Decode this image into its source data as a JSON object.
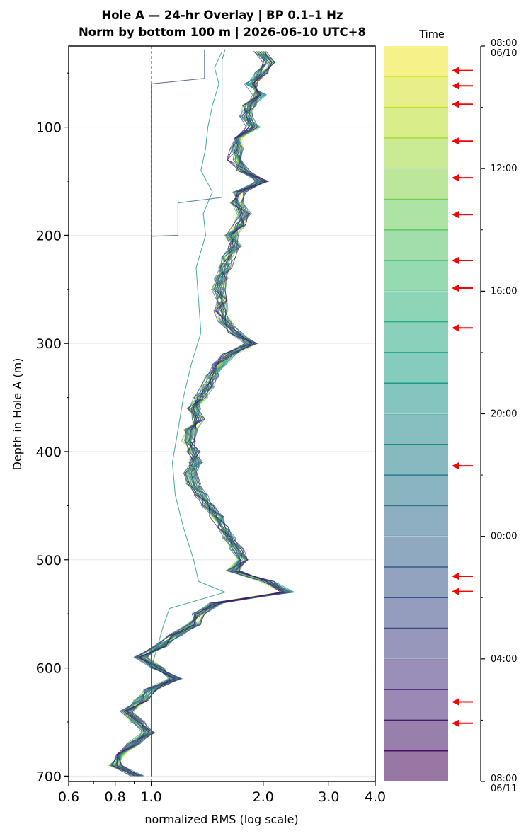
{
  "chart_data": {
    "type": "line",
    "title_line1": "Hole A — 24-hr Overlay  |  BP 0.1–1 Hz",
    "title_line2": "Norm by bottom 100 m  |  2026-06-10 UTC+8",
    "xlabel": "normalized RMS  (log scale)",
    "ylabel": "Depth in Hole A (m)",
    "x_scale": "log",
    "xlim": [
      0.6,
      4.0
    ],
    "ylim": [
      705,
      25
    ],
    "y_inverted": true,
    "grid": "horizontal",
    "reference_line_x": 1.0,
    "x_ticks": [
      "0.6",
      "0.8",
      "1.0",
      "2.0",
      "3.0",
      "4.0"
    ],
    "y_ticks": [
      "100",
      "200",
      "300",
      "400",
      "500",
      "600",
      "700"
    ],
    "colorbar": {
      "title": "Time",
      "ticks": [
        {
          "label": "08:00",
          "sublabel": "06/10"
        },
        {
          "label": "12:00",
          "sublabel": ""
        },
        {
          "label": "16:00",
          "sublabel": ""
        },
        {
          "label": "20:00",
          "sublabel": ""
        },
        {
          "label": "00:00",
          "sublabel": ""
        },
        {
          "label": "04:00",
          "sublabel": ""
        },
        {
          "label": "08:00",
          "sublabel": "06/11"
        }
      ],
      "flagged_hours": [
        0.8,
        1.3,
        1.9,
        3.1,
        4.3,
        5.5,
        7.0,
        7.9,
        9.2,
        13.7,
        17.3,
        17.8,
        21.4,
        22.1
      ],
      "arrow_color": "#ff0000"
    },
    "profile_depths": [
      30,
      40,
      50,
      60,
      70,
      80,
      90,
      100,
      110,
      120,
      130,
      140,
      150,
      160,
      170,
      180,
      190,
      200,
      210,
      220,
      230,
      240,
      250,
      260,
      270,
      280,
      290,
      300,
      310,
      320,
      330,
      340,
      350,
      360,
      370,
      380,
      390,
      400,
      410,
      420,
      430,
      440,
      450,
      460,
      470,
      480,
      490,
      500,
      510,
      520,
      530,
      540,
      550,
      560,
      570,
      580,
      590,
      600,
      610,
      620,
      630,
      640,
      650,
      660,
      670,
      680,
      690,
      700
    ],
    "mean_profile": [
      1.96,
      2.08,
      1.98,
      1.86,
      1.96,
      1.84,
      1.8,
      1.88,
      1.74,
      1.7,
      1.67,
      1.76,
      1.98,
      1.72,
      1.7,
      1.78,
      1.74,
      1.64,
      1.68,
      1.62,
      1.58,
      1.54,
      1.52,
      1.56,
      1.54,
      1.58,
      1.68,
      1.86,
      1.62,
      1.52,
      1.46,
      1.42,
      1.36,
      1.3,
      1.34,
      1.28,
      1.26,
      1.3,
      1.32,
      1.28,
      1.3,
      1.36,
      1.42,
      1.5,
      1.56,
      1.62,
      1.7,
      1.78,
      1.66,
      2.05,
      2.32,
      1.5,
      1.34,
      1.3,
      1.16,
      1.06,
      0.94,
      1.04,
      1.16,
      1.0,
      0.94,
      0.86,
      0.92,
      0.98,
      0.9,
      0.84,
      0.8,
      0.92
    ],
    "series": [
      {
        "start_hour": 0.0,
        "values": [
          2.0,
          2.1,
          2.0,
          1.9,
          1.95,
          1.82,
          1.8,
          1.9,
          1.76,
          1.72,
          1.68,
          1.78,
          2.0,
          1.74,
          1.72,
          1.8,
          1.75,
          1.65,
          1.7,
          1.6,
          1.6,
          1.55,
          1.5,
          1.58,
          1.55,
          1.6,
          1.7,
          1.85,
          1.6,
          1.5,
          1.45,
          1.42,
          1.38,
          1.3,
          1.35,
          1.3,
          1.26,
          1.28,
          1.32,
          1.3,
          1.28,
          1.38,
          1.4,
          1.5,
          1.55,
          1.6,
          1.72,
          1.8,
          1.68,
          2.1,
          2.35,
          1.52,
          1.36,
          1.32,
          1.14,
          1.05,
          0.95,
          1.05,
          1.18,
          1.02,
          0.95,
          0.85,
          0.92,
          0.98,
          0.9,
          0.85,
          0.8,
          0.92
        ]
      },
      {
        "start_hour": 6.0,
        "values": [
          1.95,
          2.05,
          1.96,
          1.88,
          1.98,
          1.86,
          1.82,
          1.86,
          1.72,
          1.7,
          1.66,
          1.74,
          1.96,
          1.7,
          1.68,
          1.76,
          1.72,
          1.62,
          1.66,
          1.64,
          1.56,
          1.52,
          1.54,
          1.55,
          1.52,
          1.56,
          1.66,
          1.9,
          1.64,
          1.54,
          1.48,
          1.4,
          1.34,
          1.32,
          1.36,
          1.26,
          1.25,
          1.3,
          1.3,
          1.26,
          1.32,
          1.34,
          1.44,
          1.52,
          1.58,
          1.64,
          1.72,
          1.76,
          1.64,
          2.0,
          2.3,
          1.48,
          1.33,
          1.28,
          1.17,
          1.07,
          0.93,
          1.03,
          1.15,
          1.01,
          0.95,
          0.87,
          0.93,
          0.99,
          0.91,
          0.84,
          0.81,
          0.92
        ]
      },
      {
        "start_hour": 12.0,
        "values": [
          1.98,
          2.12,
          2.0,
          1.84,
          1.94,
          1.84,
          1.78,
          1.88,
          1.74,
          1.68,
          1.66,
          1.76,
          2.02,
          1.72,
          1.7,
          1.8,
          1.76,
          1.64,
          1.68,
          1.62,
          1.58,
          1.54,
          1.5,
          1.56,
          1.56,
          1.58,
          1.68,
          1.84,
          1.6,
          1.5,
          1.44,
          1.42,
          1.36,
          1.28,
          1.32,
          1.28,
          1.27,
          1.31,
          1.34,
          1.28,
          1.3,
          1.36,
          1.42,
          1.48,
          1.56,
          1.6,
          1.68,
          1.8,
          1.66,
          2.08,
          2.36,
          1.5,
          1.34,
          1.3,
          1.16,
          1.05,
          0.94,
          1.04,
          1.17,
          0.99,
          0.93,
          0.86,
          0.91,
          0.97,
          0.89,
          0.83,
          0.79,
          0.92
        ]
      },
      {
        "start_hour": 18.0,
        "values": [
          1.92,
          2.04,
          1.96,
          1.86,
          1.96,
          1.84,
          1.8,
          1.88,
          1.74,
          1.7,
          1.68,
          1.76,
          1.94,
          1.72,
          1.7,
          1.76,
          1.74,
          1.64,
          1.68,
          1.62,
          1.58,
          1.55,
          1.52,
          1.56,
          1.54,
          1.58,
          1.68,
          1.86,
          1.62,
          1.52,
          1.46,
          1.42,
          1.36,
          1.3,
          1.34,
          1.28,
          1.26,
          1.3,
          1.32,
          1.28,
          1.3,
          1.36,
          1.42,
          1.5,
          1.56,
          1.62,
          1.7,
          1.78,
          1.66,
          2.04,
          2.28,
          1.5,
          1.34,
          1.3,
          1.16,
          1.06,
          0.94,
          1.04,
          1.16,
          1.0,
          0.94,
          0.86,
          0.92,
          0.98,
          0.9,
          0.84,
          0.8,
          0.92
        ]
      }
    ],
    "outlier_traces": [
      {
        "start_hour": 10.5,
        "depths": [
          30,
          45,
          60,
          80,
          100,
          120,
          140,
          160,
          180,
          200,
          230,
          260,
          290,
          320,
          350,
          380,
          410,
          440,
          470,
          500,
          520,
          530,
          545,
          560,
          580,
          600
        ],
        "values": [
          1.55,
          1.48,
          1.52,
          1.46,
          1.42,
          1.4,
          1.36,
          1.46,
          1.38,
          1.4,
          1.32,
          1.34,
          1.36,
          1.28,
          1.22,
          1.18,
          1.14,
          1.16,
          1.22,
          1.3,
          1.34,
          1.58,
          1.12,
          1.08,
          1.04,
          1.0
        ]
      },
      {
        "start_hour": 15.5,
        "depths": [
          28,
          38,
          100,
          165,
          170,
          200,
          201,
          700
        ],
        "values": [
          1.58,
          1.55,
          1.55,
          1.55,
          1.18,
          1.18,
          1.0,
          1.0
        ]
      },
      {
        "start_hour": 18.5,
        "depths": [
          28,
          55,
          60,
          100,
          105,
          130,
          135,
          700
        ],
        "values": [
          1.39,
          1.39,
          1.0,
          1.0,
          1.0,
          1.0,
          1.0,
          1.0
        ]
      }
    ]
  }
}
